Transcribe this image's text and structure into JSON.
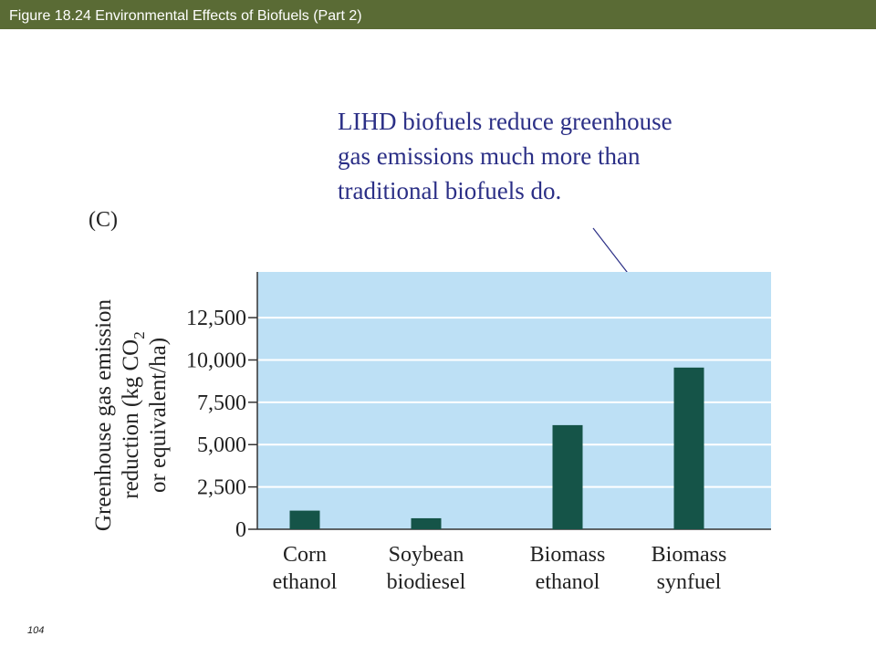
{
  "header": {
    "title": "Figure 18.24  Environmental Effects of Biofuels (Part 2)"
  },
  "annotation": {
    "lines": [
      "LIHD biofuels reduce greenhouse",
      "gas emissions much more than",
      "traditional biofuels do."
    ],
    "color": "#2b2f86"
  },
  "panel_label": "(C)",
  "page_number": "104",
  "colors": {
    "header_bg": "#5a6b35",
    "plot_bg": "#bde0f5",
    "bar": "#155448",
    "annotation_text": "#2b2f86"
  },
  "chart_data": {
    "type": "bar",
    "categories": [
      [
        "Corn",
        "ethanol"
      ],
      [
        "Soybean",
        "biodiesel"
      ],
      [
        "Biomass",
        "ethanol"
      ],
      [
        "Biomass",
        "synfuel"
      ]
    ],
    "values": [
      1100,
      650,
      6150,
      9550
    ],
    "yticks": [
      "0",
      "2,500",
      "5,000",
      "7,500",
      "10,000",
      "12,500"
    ],
    "ytick_values": [
      0,
      2500,
      5000,
      7500,
      10000,
      12500
    ],
    "ylabel_lines": [
      "Greenhouse gas emission",
      "reduction (kg CO",
      "or equivalent/ha)"
    ],
    "ylabel_subscript": "2",
    "ylim": [
      0,
      15200
    ],
    "grid": true
  }
}
